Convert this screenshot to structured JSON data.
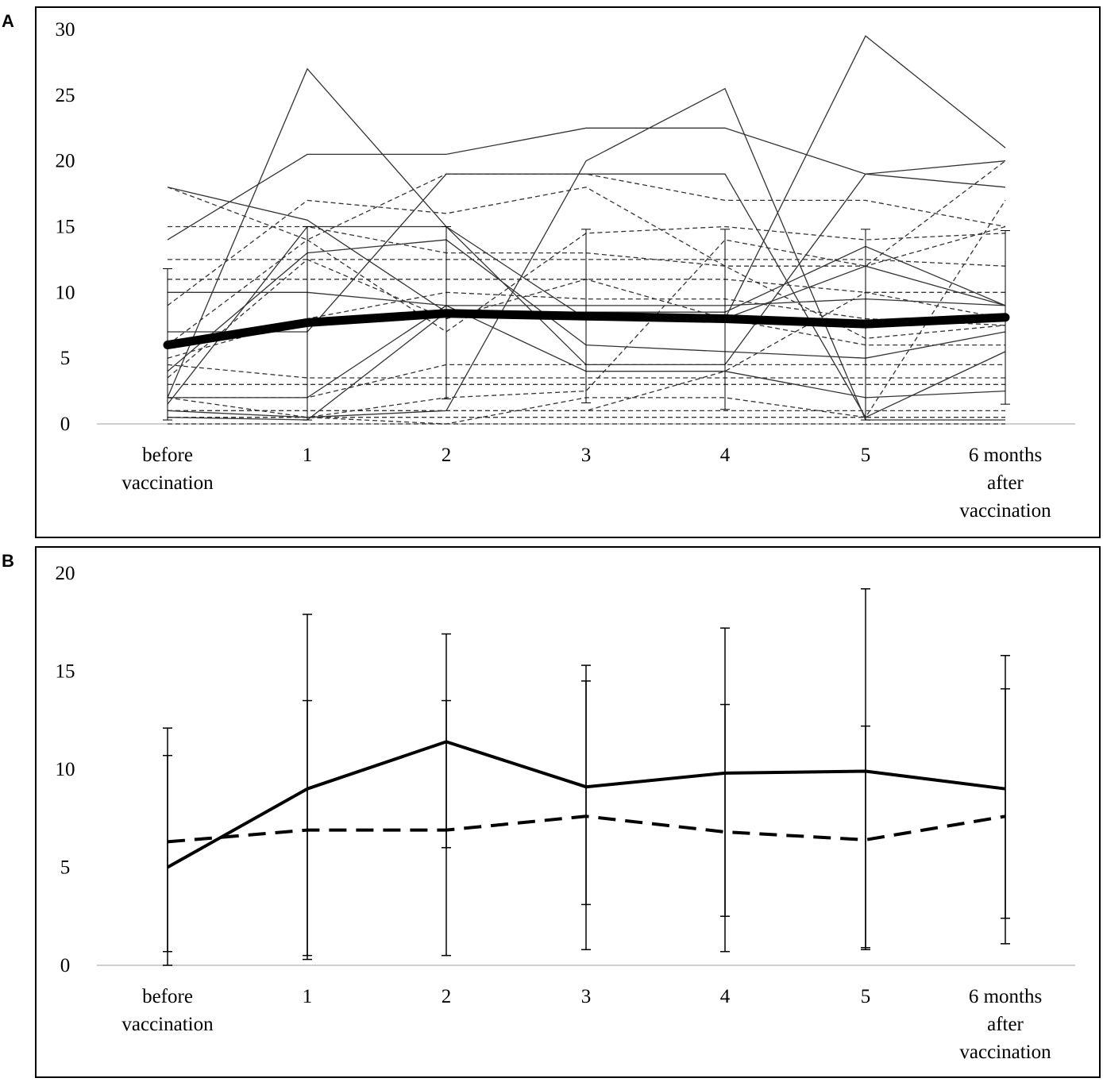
{
  "panels": {
    "a": {
      "label": "A"
    },
    "b": {
      "label": "B"
    }
  },
  "colors": {
    "line": "#000000",
    "thin_line": "#333333",
    "axis": "#bfbfbf"
  },
  "chart_data": [
    {
      "panel": "A",
      "type": "line",
      "categories": [
        "before vaccination",
        "1",
        "2",
        "3",
        "4",
        "5",
        "6 months after vaccination"
      ],
      "yticks": [
        0,
        5,
        10,
        15,
        20,
        25,
        30
      ],
      "ylim": [
        0,
        30
      ],
      "mean": {
        "name": "mean",
        "values": [
          6.0,
          7.7,
          8.4,
          8.2,
          8.0,
          7.6,
          8.1
        ],
        "err_upper": [
          11.8,
          15.0,
          15.0,
          14.8,
          14.8,
          14.8,
          14.7
        ],
        "err_lower": [
          0.3,
          0.3,
          1.9,
          1.6,
          1.1,
          0.3,
          1.5
        ]
      },
      "individual_solid": [
        [
          18,
          15.5,
          8.5,
          8.5,
          8.5,
          13.5,
          9
        ],
        [
          14,
          20.5,
          20.5,
          22.5,
          22.5,
          19,
          18
        ],
        [
          2,
          27,
          15,
          8,
          8,
          29.5,
          21
        ],
        [
          10,
          10,
          9,
          9,
          9,
          9.5,
          9
        ],
        [
          4,
          13,
          14,
          6,
          5.5,
          5,
          7
        ],
        [
          7,
          7,
          19,
          19,
          19,
          0.5,
          5.5
        ],
        [
          2,
          2,
          9,
          4,
          4,
          2,
          2.5
        ],
        [
          0.5,
          0.3,
          8.5,
          8.5,
          8,
          12,
          9
        ],
        [
          1.5,
          15,
          15,
          4.5,
          4.5,
          19,
          20
        ],
        [
          1,
          0.5,
          1,
          20,
          25.5,
          0.3,
          0.3
        ]
      ],
      "individual_dashed": [
        [
          15,
          15,
          13,
          13,
          12,
          12,
          15
        ],
        [
          12.5,
          12.5,
          12.5,
          12.5,
          12.5,
          12.5,
          12
        ],
        [
          11,
          11,
          11,
          11,
          11,
          10,
          10
        ],
        [
          9,
          17,
          16,
          18,
          12,
          6.5,
          7.5
        ],
        [
          18,
          14,
          19,
          19,
          17,
          17,
          15
        ],
        [
          4.5,
          3.5,
          3.5,
          3.5,
          3.5,
          3.5,
          3.5
        ],
        [
          3,
          3,
          3,
          3,
          3,
          3,
          3
        ],
        [
          2,
          2,
          4.5,
          4.5,
          4.5,
          4.5,
          4.5
        ],
        [
          1,
          1,
          1,
          1,
          1,
          1,
          1
        ],
        [
          0.5,
          0.5,
          0.5,
          0.5,
          0.5,
          0.5,
          0.5
        ],
        [
          0,
          0,
          0,
          0,
          0,
          0,
          0
        ],
        [
          5,
          8,
          10,
          9.5,
          9.5,
          8,
          7.5
        ],
        [
          6,
          14,
          7,
          14.5,
          15,
          14,
          14.5
        ],
        [
          3.5,
          12.5,
          8,
          11,
          8,
          6,
          6
        ],
        [
          2,
          0.5,
          0,
          2,
          2,
          0.5,
          17
        ],
        [
          0.5,
          0.5,
          2,
          2.5,
          14,
          12,
          20
        ],
        [
          1,
          1,
          1,
          1,
          4,
          10,
          8
        ]
      ]
    },
    {
      "panel": "B",
      "type": "line",
      "categories": [
        "before vaccination",
        "1",
        "2",
        "3",
        "4",
        "5",
        "6 months after vaccination"
      ],
      "yticks": [
        0,
        5,
        10,
        15,
        20
      ],
      "ylim": [
        0,
        20
      ],
      "series": [
        {
          "name": "solid",
          "style": "solid",
          "values": [
            5.0,
            9.0,
            11.4,
            9.1,
            9.8,
            9.9,
            9.0
          ],
          "err_upper": [
            12.1,
            17.9,
            16.9,
            14.5,
            13.3,
            12.2,
            14.1
          ],
          "err_lower": [
            0.7,
            0.3,
            0.5,
            0.8,
            0.7,
            0.8,
            1.1
          ]
        },
        {
          "name": "dashed",
          "style": "dashed",
          "values": [
            6.3,
            6.9,
            6.9,
            7.6,
            6.8,
            6.4,
            7.6
          ],
          "err_upper": [
            10.7,
            13.5,
            13.5,
            15.3,
            17.2,
            19.2,
            15.8
          ],
          "err_lower": [
            0.0,
            0.5,
            6.0,
            3.1,
            2.5,
            0.9,
            2.4
          ]
        }
      ]
    }
  ]
}
